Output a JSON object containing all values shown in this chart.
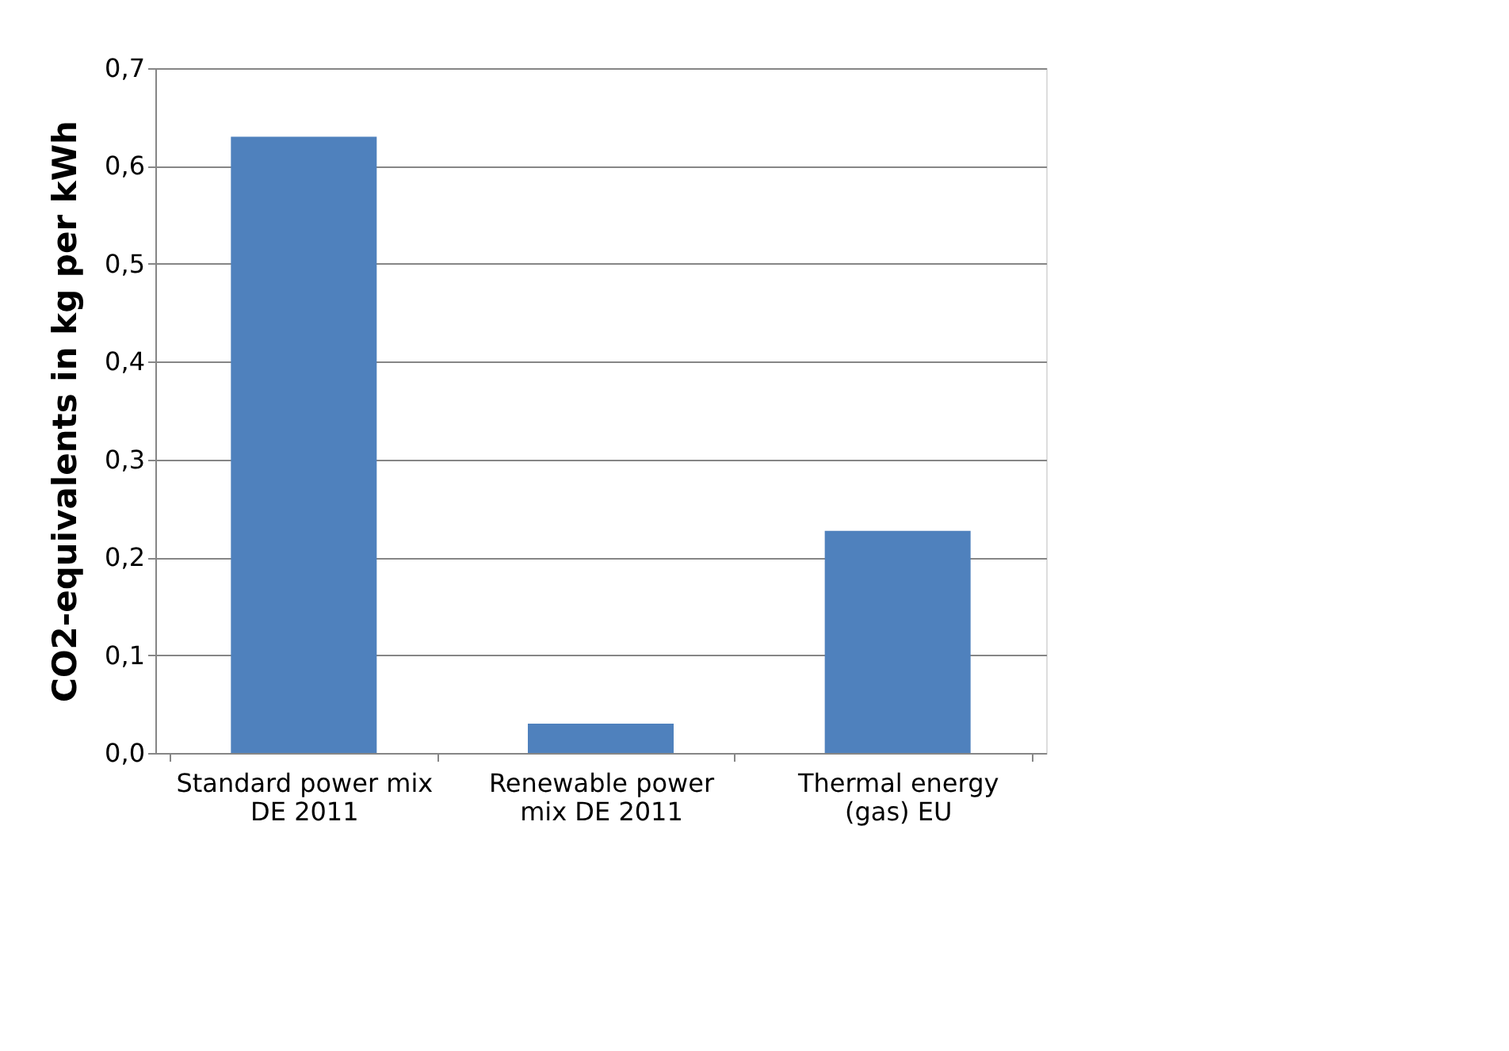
{
  "chart_data": {
    "type": "bar",
    "ylabel": "CO2-equivalents in kg per kWh",
    "categories": [
      "Standard power mix DE 2011",
      "Renewable power mix DE 2011",
      "Thermal energy (gas) EU"
    ],
    "values": [
      0.63,
      0.03,
      0.227
    ],
    "color": "#4f81bd",
    "ylim": [
      0,
      0.7
    ],
    "yticks": [
      {
        "value": 0,
        "label": "0,0"
      },
      {
        "value": 0.1,
        "label": "0,1"
      },
      {
        "value": 0.2,
        "label": "0,2"
      },
      {
        "value": 0.3,
        "label": "0,3"
      },
      {
        "value": 0.4,
        "label": "0,4"
      },
      {
        "value": 0.5,
        "label": "0,5"
      },
      {
        "value": 0.6,
        "label": "0,6"
      },
      {
        "value": 0.7,
        "label": "0,7"
      }
    ],
    "grid": "y"
  }
}
